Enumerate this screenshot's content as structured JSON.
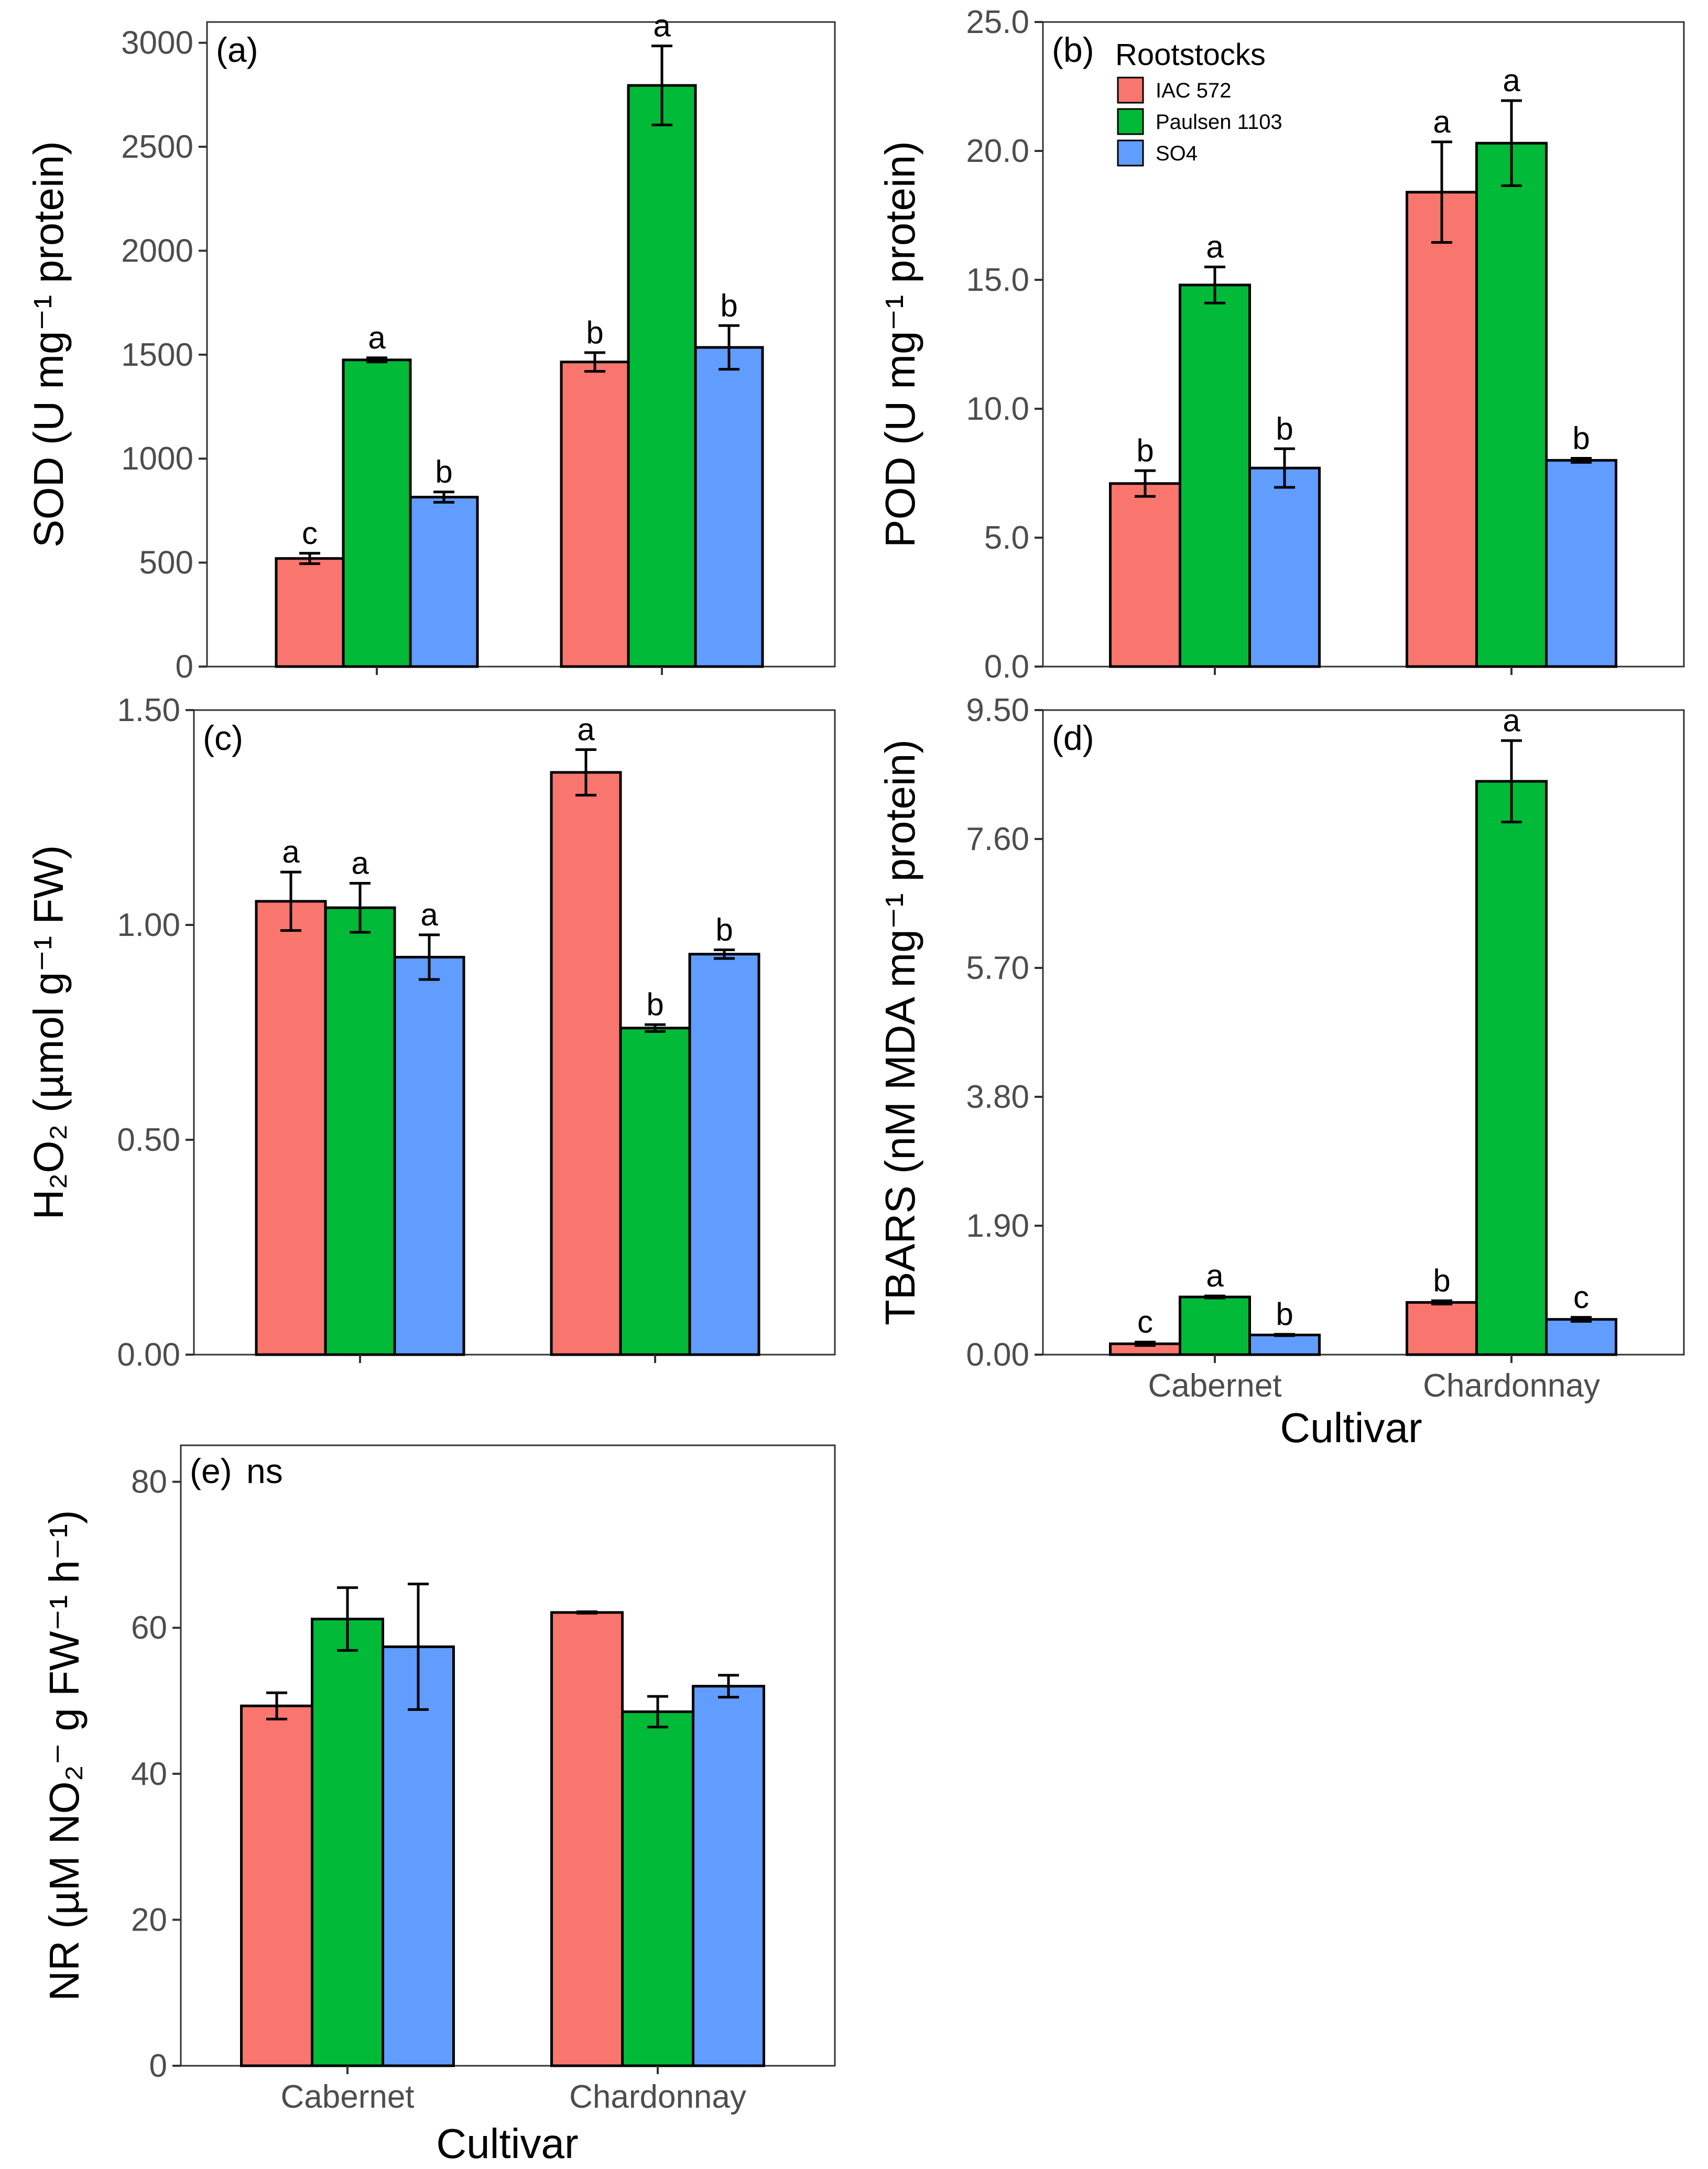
{
  "legend": {
    "title": "Rootstocks",
    "items": [
      {
        "label": "IAC 572",
        "color": "#F8766D"
      },
      {
        "label": "Paulsen 1103",
        "color": "#00BA38"
      },
      {
        "label": "SO4",
        "color": "#619CFF"
      }
    ]
  },
  "chart_data": [
    {
      "id": "a",
      "type": "bar",
      "panel_label": "(a)",
      "note": "",
      "ylabel": "SOD (U mg⁻¹ protein)",
      "xlabel": "",
      "categories": [
        "Cabernet",
        "Chardonnay"
      ],
      "show_x_tick_labels": false,
      "ylim": [
        0,
        3100
      ],
      "yticks": [
        0,
        500,
        1000,
        1500,
        2000,
        2500,
        3000
      ],
      "ytick_labels": [
        "0",
        "500",
        "1000",
        "1500",
        "2000",
        "2500",
        "3000"
      ],
      "series": [
        {
          "name": "IAC 572",
          "values": [
            520,
            1465
          ],
          "errors": [
            25,
            45
          ],
          "letters": [
            "c",
            "b"
          ]
        },
        {
          "name": "Paulsen 1103",
          "values": [
            1475,
            2795
          ],
          "errors": [
            10,
            190
          ],
          "letters": [
            "a",
            "a"
          ]
        },
        {
          "name": "SO4",
          "values": [
            815,
            1535
          ],
          "errors": [
            25,
            105
          ],
          "letters": [
            "b",
            "b"
          ]
        }
      ]
    },
    {
      "id": "b",
      "type": "bar",
      "panel_label": "(b)",
      "note": "",
      "ylabel": "POD (U mg⁻¹ protein)",
      "xlabel": "",
      "categories": [
        "Cabernet",
        "Chardonnay"
      ],
      "show_x_tick_labels": false,
      "ylim": [
        0,
        25
      ],
      "yticks": [
        0,
        5,
        10,
        15,
        20,
        25
      ],
      "ytick_labels": [
        "0.0",
        "5.0",
        "10.0",
        "15.0",
        "20.0",
        "25.0"
      ],
      "series": [
        {
          "name": "IAC 572",
          "values": [
            7.1,
            18.4
          ],
          "errors": [
            0.5,
            1.95
          ],
          "letters": [
            "b",
            "a"
          ]
        },
        {
          "name": "Paulsen 1103",
          "values": [
            14.8,
            20.3
          ],
          "errors": [
            0.7,
            1.65
          ],
          "letters": [
            "a",
            "a"
          ]
        },
        {
          "name": "SO4",
          "values": [
            7.7,
            8.0
          ],
          "errors": [
            0.75,
            0.08
          ],
          "letters": [
            "b",
            "b"
          ]
        }
      ]
    },
    {
      "id": "c",
      "type": "bar",
      "panel_label": "(c)",
      "note": "",
      "ylabel": "H₂O₂ (µmol g⁻¹ FW)",
      "xlabel": "",
      "categories": [
        "Cabernet",
        "Chardonnay"
      ],
      "show_x_tick_labels": false,
      "ylim": [
        0,
        1.5
      ],
      "yticks": [
        0,
        0.5,
        1.0,
        1.5
      ],
      "ytick_labels": [
        "0.00",
        "0.50",
        "1.00",
        "1.50"
      ],
      "series": [
        {
          "name": "IAC 572",
          "values": [
            1.055,
            1.355
          ],
          "errors": [
            0.068,
            0.053
          ],
          "letters": [
            "a",
            "a"
          ]
        },
        {
          "name": "Paulsen 1103",
          "values": [
            1.04,
            0.76
          ],
          "errors": [
            0.057,
            0.008
          ],
          "letters": [
            "a",
            "b"
          ]
        },
        {
          "name": "SO4",
          "values": [
            0.925,
            0.932
          ],
          "errors": [
            0.052,
            0.01
          ],
          "letters": [
            "a",
            "b"
          ]
        }
      ]
    },
    {
      "id": "d",
      "type": "bar",
      "panel_label": "(d)",
      "note": "",
      "ylabel": "TBARS (nM MDA mg⁻¹ protein)",
      "xlabel": "Cultivar",
      "categories": [
        "Cabernet",
        "Chardonnay"
      ],
      "show_x_tick_labels": true,
      "ylim": [
        0,
        9.5
      ],
      "yticks": [
        0,
        1.9,
        3.8,
        5.7,
        7.6,
        9.5
      ],
      "ytick_labels": [
        "0.00",
        "1.90",
        "3.80",
        "5.70",
        "7.60",
        "9.50"
      ],
      "series": [
        {
          "name": "IAC 572",
          "values": [
            0.16,
            0.77
          ],
          "errors": [
            0.025,
            0.025
          ],
          "letters": [
            "c",
            "b"
          ]
        },
        {
          "name": "Paulsen 1103",
          "values": [
            0.85,
            8.45
          ],
          "errors": [
            0.015,
            0.6
          ],
          "letters": [
            "a",
            "a"
          ]
        },
        {
          "name": "SO4",
          "values": [
            0.29,
            0.52
          ],
          "errors": [
            0.01,
            0.03
          ],
          "letters": [
            "b",
            "c"
          ]
        }
      ]
    },
    {
      "id": "e",
      "type": "bar",
      "panel_label": "(e)",
      "note": "ns",
      "ylabel": "NR (µM NO₂⁻ g FW⁻¹ h⁻¹)",
      "xlabel": "Cultivar",
      "categories": [
        "Cabernet",
        "Chardonnay"
      ],
      "show_x_tick_labels": true,
      "ylim": [
        0,
        85
      ],
      "yticks": [
        0,
        20,
        40,
        60,
        80
      ],
      "ytick_labels": [
        "0",
        "20",
        "40",
        "60",
        "80"
      ],
      "series": [
        {
          "name": "IAC 572",
          "values": [
            49.3,
            62.1
          ],
          "errors": [
            1.8,
            0.1
          ],
          "letters": [
            "",
            ""
          ]
        },
        {
          "name": "Paulsen 1103",
          "values": [
            61.2,
            48.5
          ],
          "errors": [
            4.3,
            2.1
          ],
          "letters": [
            "",
            ""
          ]
        },
        {
          "name": "SO4",
          "values": [
            57.4,
            52.0
          ],
          "errors": [
            8.6,
            1.5
          ],
          "letters": [
            "",
            ""
          ]
        }
      ]
    }
  ]
}
